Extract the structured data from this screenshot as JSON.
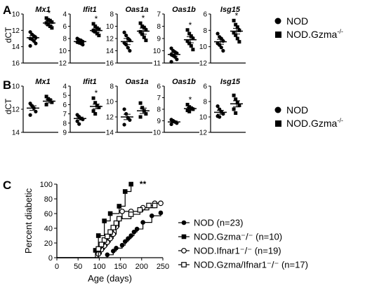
{
  "chart_data": [
    {
      "panel": "A",
      "type": "scatter",
      "ylabel": "dCT",
      "legend": [
        "NOD",
        "NOD.Gzma-/-"
      ],
      "legend_markers": [
        "circle",
        "square"
      ],
      "subplots": [
        {
          "title": "Mx1",
          "ylim": [
            16,
            10
          ],
          "yticks": [
            "10",
            "12",
            "14",
            "16"
          ],
          "sig": "*",
          "series": [
            {
              "name": "NOD",
              "values": [
                12.2,
                12.5,
                12.7,
                12.9,
                13.0,
                13.1,
                13.3,
                13.6,
                13.9
              ],
              "mean": 12.9,
              "sem": 0.25
            },
            {
              "name": "NOD.Gzma-/-",
              "values": [
                10.5,
                10.7,
                10.8,
                11.0,
                11.1,
                11.3,
                11.5,
                11.7
              ],
              "mean": 11.1,
              "sem": 0.3
            }
          ]
        },
        {
          "title": "Ifit1",
          "ylim": [
            12,
            4
          ],
          "yticks": [
            "4",
            "6",
            "8",
            "10",
            "12"
          ],
          "sig": "*",
          "series": [
            {
              "name": "NOD",
              "values": [
                8.0,
                8.2,
                8.3,
                8.5,
                8.6,
                8.7,
                8.8,
                9.0
              ],
              "mean": 8.5,
              "sem": 0.2
            },
            {
              "name": "NOD.Gzma-/-",
              "values": [
                5.6,
                6.0,
                6.3,
                6.5,
                6.7,
                6.9,
                7.2,
                7.5
              ],
              "mean": 6.7,
              "sem": 0.3
            }
          ]
        },
        {
          "title": "Oas1a",
          "ylim": [
            16,
            8
          ],
          "yticks": [
            "8",
            "10",
            "12",
            "14",
            "16"
          ],
          "sig": "*",
          "series": [
            {
              "name": "NOD",
              "values": [
                11.0,
                11.5,
                12.0,
                12.3,
                12.7,
                13.0,
                13.5,
                14.0
              ],
              "mean": 12.5,
              "sem": 0.5
            },
            {
              "name": "NOD.Gzma-/-",
              "values": [
                9.5,
                10.0,
                10.2,
                10.6,
                10.9,
                11.3,
                11.8,
                12.3
              ],
              "mean": 10.8,
              "sem": 0.5
            }
          ]
        },
        {
          "title": "Oas1b",
          "ylim": [
            11,
            7
          ],
          "yticks": [
            "7",
            "8",
            "9",
            "10",
            "11"
          ],
          "sig": "*",
          "series": [
            {
              "name": "NOD",
              "values": [
                9.8,
                10.0,
                10.1,
                10.2,
                10.3,
                10.4,
                10.5,
                10.7,
                10.9
              ],
              "mean": 10.3,
              "sem": 0.15
            },
            {
              "name": "NOD.Gzma-/-",
              "values": [
                8.3,
                8.6,
                8.8,
                9.0,
                9.2,
                9.4,
                9.6,
                9.9
              ],
              "mean": 9.1,
              "sem": 0.25
            }
          ]
        },
        {
          "title": "Isg15",
          "ylim": [
            12,
            6
          ],
          "yticks": [
            "6",
            "8",
            "10",
            "12"
          ],
          "sig": "*",
          "series": [
            {
              "name": "NOD",
              "values": [
                8.4,
                8.8,
                9.0,
                9.3,
                9.6,
                9.8,
                10.1,
                10.5
              ],
              "mean": 9.4,
              "sem": 0.3
            },
            {
              "name": "NOD.Gzma-/-",
              "values": [
                6.8,
                7.3,
                7.6,
                8.0,
                8.3,
                8.6,
                9.0,
                9.4
              ],
              "mean": 8.1,
              "sem": 0.35
            }
          ]
        }
      ]
    },
    {
      "panel": "B",
      "type": "scatter",
      "ylabel": "dCT",
      "legend": [
        "NOD",
        "NOD.Gzma-/-"
      ],
      "legend_markers": [
        "circle",
        "square"
      ],
      "subplots": [
        {
          "title": "Mx1",
          "ylim": [
            14,
            10
          ],
          "yticks": [
            "10",
            "12",
            "14"
          ],
          "sig": "",
          "series": [
            {
              "name": "NOD",
              "values": [
                11.5,
                11.7,
                11.9,
                12.2,
                12.5
              ],
              "mean": 11.9,
              "sem": 0.2
            },
            {
              "name": "NOD.Gzma-/-",
              "values": [
                10.9,
                11.1,
                11.2,
                11.4,
                11.6
              ],
              "mean": 11.3,
              "sem": 0.15
            }
          ]
        },
        {
          "title": "Ifit1",
          "ylim": [
            9,
            4
          ],
          "yticks": [
            "4",
            "5",
            "6",
            "7",
            "8",
            "9"
          ],
          "sig": "*",
          "series": [
            {
              "name": "NOD",
              "values": [
                7.1,
                7.3,
                7.5,
                7.6,
                7.8,
                8.1
              ],
              "mean": 7.5,
              "sem": 0.15
            },
            {
              "name": "NOD.Gzma-/-",
              "values": [
                5.3,
                5.8,
                6.1,
                6.3,
                6.7,
                7.0
              ],
              "mean": 6.2,
              "sem": 0.25
            }
          ]
        },
        {
          "title": "Oas1a",
          "ylim": [
            14,
            8
          ],
          "yticks": [
            "8",
            "10",
            "12",
            "14"
          ],
          "sig": "",
          "series": [
            {
              "name": "NOD",
              "values": [
                11.0,
                11.6,
                12.1,
                12.4,
                13.0
              ],
              "mean": 12.0,
              "sem": 0.35
            },
            {
              "name": "NOD.Gzma-/-",
              "values": [
                10.2,
                10.8,
                11.2,
                11.6,
                12.0
              ],
              "mean": 11.2,
              "sem": 0.35
            }
          ]
        },
        {
          "title": "Oas1b",
          "ylim": [
            10,
            6
          ],
          "yticks": [
            "6",
            "7",
            "8",
            "9",
            "10"
          ],
          "sig": "*",
          "series": [
            {
              "name": "NOD",
              "values": [
                8.9,
                9.0,
                9.1,
                9.2,
                9.3
              ],
              "mean": 9.1,
              "sem": 0.08
            },
            {
              "name": "NOD.Gzma-/-",
              "values": [
                7.6,
                7.8,
                7.9,
                8.0,
                8.1,
                8.2
              ],
              "mean": 7.95,
              "sem": 0.1
            }
          ]
        },
        {
          "title": "Isg15",
          "ylim": [
            12,
            6
          ],
          "yticks": [
            "6",
            "8",
            "10",
            "12"
          ],
          "sig": "",
          "series": [
            {
              "name": "NOD",
              "values": [
                8.6,
                9.0,
                9.3,
                9.6,
                9.9,
                10.0
              ],
              "mean": 9.4,
              "sem": 0.25
            },
            {
              "name": "NOD.Gzma-/-",
              "values": [
                7.2,
                7.7,
                8.1,
                8.5,
                9.0,
                9.5
              ],
              "mean": 8.3,
              "sem": 0.4
            }
          ]
        }
      ]
    },
    {
      "panel": "C",
      "type": "line",
      "step": true,
      "xlabel": "Age (days)",
      "ylabel": "Percent diabetic",
      "xlim": [
        0,
        250
      ],
      "ylim": [
        0,
        100
      ],
      "xticks": [
        0,
        50,
        100,
        150,
        200,
        250
      ],
      "yticks": [
        0,
        20,
        40,
        60,
        80,
        100
      ],
      "grid": false,
      "legend_position": "right",
      "annotation": "**",
      "annotation_at": [
        182,
        100
      ],
      "series": [
        {
          "name": "NOD (n=23)",
          "marker": "filled-circle",
          "x": [
            119,
            133,
            140,
            154,
            161,
            168,
            175,
            182,
            189,
            203,
            224,
            245
          ],
          "y": [
            4,
            9,
            13,
            17,
            22,
            26,
            30,
            35,
            39,
            48,
            57,
            61
          ]
        },
        {
          "name": "NOD.Gzma⁻/⁻ (n=10)",
          "marker": "filled-square",
          "x": [
            91,
            98,
            112,
            126,
            147,
            161,
            175
          ],
          "y": [
            10,
            30,
            50,
            60,
            70,
            90,
            100
          ]
        },
        {
          "name": "NOD.Ifnar1⁻/⁻ (n=19)",
          "marker": "open-circle",
          "x": [
            98,
            105,
            112,
            119,
            126,
            133,
            140,
            147,
            154,
            175,
            203,
            231,
            245
          ],
          "y": [
            5,
            11,
            16,
            21,
            26,
            32,
            42,
            53,
            63,
            63,
            68,
            74,
            74
          ]
        },
        {
          "name": "NOD.Gzma/Ifnar1⁻/⁻ (n=17)",
          "marker": "open-square",
          "x": [
            98,
            105,
            112,
            119,
            126,
            133,
            140,
            147,
            175,
            196,
            217,
            231
          ],
          "y": [
            12,
            18,
            24,
            29,
            35,
            41,
            47,
            53,
            59,
            65,
            71,
            71
          ]
        }
      ]
    }
  ],
  "labels": {
    "panel_a": "A",
    "panel_b": "B",
    "panel_c": "C",
    "dct": "dCT",
    "legend_nod": "NOD",
    "legend_gzma": "NOD.Gzma",
    "legend_gzma_sup": "-/-"
  }
}
